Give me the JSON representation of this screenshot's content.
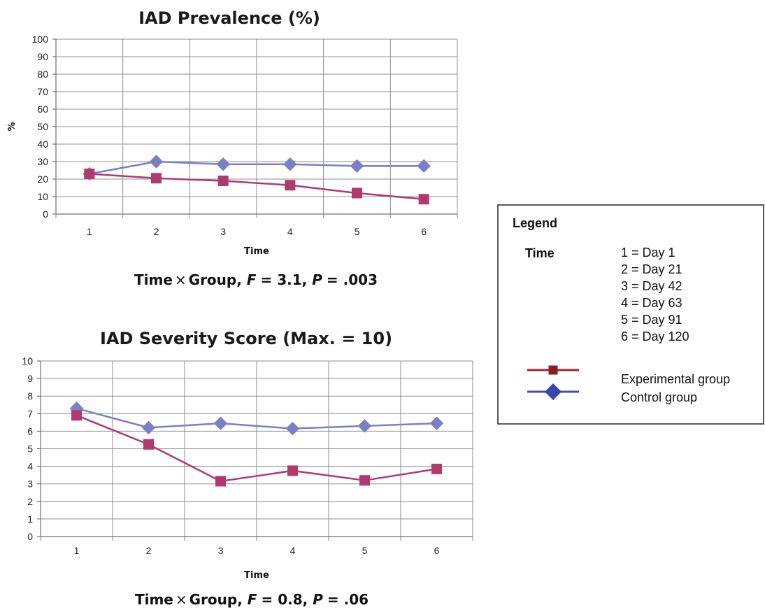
{
  "chart_data": [
    {
      "type": "line",
      "title": "IAD Prevalence (%)",
      "xlabel": "Time",
      "ylabel": "%",
      "categories": [
        "1",
        "2",
        "3",
        "4",
        "5",
        "6"
      ],
      "ylim": [
        0,
        100
      ],
      "yticks": [
        0,
        10,
        20,
        30,
        40,
        50,
        60,
        70,
        80,
        90,
        100
      ],
      "grid": true,
      "stats_prefix": "Time",
      "stats_times": "×",
      "stats_group": "Group,",
      "stats_f": "F",
      "stats_f_value": "= 3.1,",
      "stats_p": "P",
      "stats_p_value": "= .003",
      "series": [
        {
          "name": "Experimental group",
          "values": [
            23,
            20.5,
            19,
            16.5,
            12,
            8.5
          ],
          "color": "#b03a6e",
          "marker": "square"
        },
        {
          "name": "Control group",
          "values": [
            23,
            30,
            28.5,
            28.5,
            27.5,
            27.5
          ],
          "color": "#7b7fc4",
          "marker": "diamond"
        }
      ]
    },
    {
      "type": "line",
      "title": "IAD Severity Score (Max. = 10)",
      "xlabel": "Time",
      "ylabel": "",
      "categories": [
        "1",
        "2",
        "3",
        "4",
        "5",
        "6"
      ],
      "ylim": [
        0,
        10
      ],
      "yticks": [
        0,
        1,
        2,
        3,
        4,
        5,
        6,
        7,
        8,
        9,
        10
      ],
      "grid": true,
      "stats_prefix": "Time",
      "stats_times": "×",
      "stats_group": "Group,",
      "stats_f": "F",
      "stats_f_value": "= 0.8,",
      "stats_p": "P",
      "stats_p_value": "= .06",
      "series": [
        {
          "name": "Experimental group",
          "values": [
            6.9,
            5.25,
            3.15,
            3.75,
            3.2,
            3.85
          ],
          "color": "#b03a6e",
          "marker": "square"
        },
        {
          "name": "Control group",
          "values": [
            7.3,
            6.2,
            6.45,
            6.15,
            6.3,
            6.45
          ],
          "color": "#7b7fc4",
          "marker": "diamond"
        }
      ]
    }
  ],
  "legend": {
    "title": "Legend",
    "time_label": "Time",
    "time_entries": [
      "1 = Day 1",
      "2 = Day 21",
      "3 = Day 42",
      "4 = Day 63",
      "5 = Day 91",
      "6 = Day 120"
    ],
    "series": [
      {
        "label": "Experimental group",
        "line_color": "#a3202b",
        "marker_color": "#8b1d23",
        "marker": "square"
      },
      {
        "label": "Control group",
        "line_color": "#4050a8",
        "marker_color": "#3848a8",
        "marker": "diamond"
      }
    ]
  }
}
